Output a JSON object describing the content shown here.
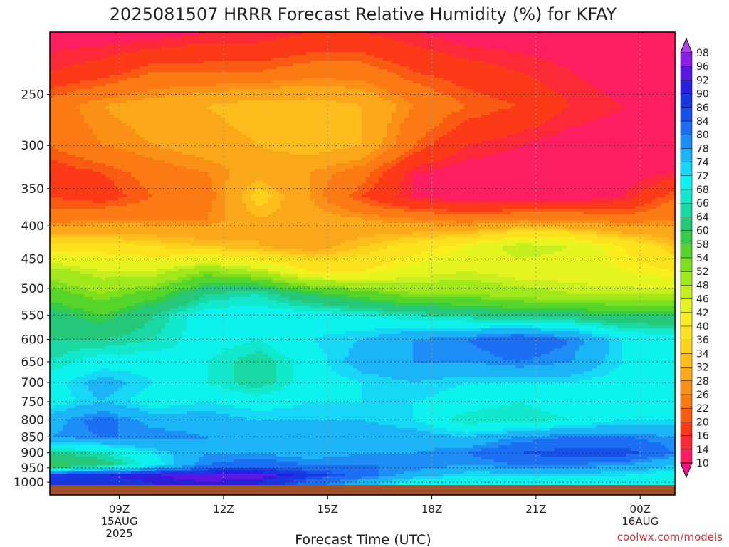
{
  "chart_data": {
    "type": "heatmap",
    "title": "2025081507 HRRR Forecast Relative Humidity (%) for KFAY",
    "xlabel": "Forecast Time (UTC)",
    "ylabel": "",
    "credit": "coolwx.com/models",
    "y_scale": "log-pressure",
    "y_axis_inverted": true,
    "ylim": [
      1010,
      200
    ],
    "x_ticks": [
      {
        "label": "09Z",
        "sub": [
          "15AUG",
          "2025"
        ],
        "hour": 9
      },
      {
        "label": "12Z",
        "sub": [],
        "hour": 12
      },
      {
        "label": "15Z",
        "sub": [],
        "hour": 15
      },
      {
        "label": "18Z",
        "sub": [],
        "hour": 18
      },
      {
        "label": "21Z",
        "sub": [],
        "hour": 21
      },
      {
        "label": "00Z",
        "sub": [
          "16AUG"
        ],
        "hour": 24
      }
    ],
    "xlim": [
      7,
      25
    ],
    "y_ticks": [
      250,
      300,
      350,
      400,
      450,
      500,
      550,
      600,
      650,
      700,
      750,
      800,
      850,
      900,
      950,
      1000
    ],
    "grid": true,
    "colorbar": {
      "position": "right",
      "levels": [
        10,
        14,
        16,
        20,
        22,
        26,
        28,
        32,
        34,
        36,
        40,
        42,
        46,
        48,
        52,
        54,
        58,
        60,
        64,
        66,
        68,
        72,
        74,
        78,
        80,
        84,
        86,
        90,
        92,
        96,
        98
      ],
      "colors": [
        "#f70f85",
        "#fc1e60",
        "#fc2a36",
        "#fd3a18",
        "#fb5a12",
        "#fb7a14",
        "#fa9116",
        "#fba71a",
        "#fcbd1c",
        "#fcd21c",
        "#fce11e",
        "#faef1e",
        "#e6f51f",
        "#c5ef1e",
        "#a0e71c",
        "#7ddf1d",
        "#55d42a",
        "#35cc4a",
        "#24c878",
        "#1ad8a4",
        "#12e8cc",
        "#0ef2ee",
        "#16d8f6",
        "#1ab4f7",
        "#1d8ef6",
        "#1c6ef2",
        "#1a50ea",
        "#1836e2",
        "#2a1ee0",
        "#5a18e6",
        "#8c1ce8",
        "#b040ee"
      ]
    },
    "profiles": [
      {
        "hour": 7.0,
        "rh": [
          [
            200,
            12
          ],
          [
            230,
            16
          ],
          [
            260,
            24
          ],
          [
            300,
            22
          ],
          [
            330,
            18
          ],
          [
            360,
            20
          ],
          [
            390,
            24
          ],
          [
            430,
            38
          ],
          [
            470,
            50
          ],
          [
            510,
            56
          ],
          [
            550,
            62
          ],
          [
            600,
            64
          ],
          [
            650,
            66
          ],
          [
            700,
            70
          ],
          [
            750,
            70
          ],
          [
            800,
            76
          ],
          [
            850,
            78
          ],
          [
            900,
            64
          ],
          [
            940,
            58
          ],
          [
            975,
            88
          ],
          [
            1000,
            86
          ]
        ]
      },
      {
        "hour": 8.5,
        "rh": [
          [
            200,
            12
          ],
          [
            230,
            18
          ],
          [
            260,
            28
          ],
          [
            300,
            26
          ],
          [
            330,
            20
          ],
          [
            360,
            18
          ],
          [
            390,
            26
          ],
          [
            430,
            38
          ],
          [
            470,
            46
          ],
          [
            510,
            52
          ],
          [
            550,
            58
          ],
          [
            600,
            64
          ],
          [
            650,
            70
          ],
          [
            700,
            76
          ],
          [
            750,
            74
          ],
          [
            800,
            82
          ],
          [
            850,
            80
          ],
          [
            900,
            66
          ],
          [
            940,
            62
          ],
          [
            975,
            90
          ],
          [
            1000,
            88
          ]
        ]
      },
      {
        "hour": 10.0,
        "rh": [
          [
            200,
            12
          ],
          [
            230,
            22
          ],
          [
            260,
            30
          ],
          [
            300,
            28
          ],
          [
            330,
            24
          ],
          [
            360,
            22
          ],
          [
            390,
            26
          ],
          [
            430,
            36
          ],
          [
            470,
            46
          ],
          [
            510,
            56
          ],
          [
            550,
            64
          ],
          [
            600,
            66
          ],
          [
            650,
            70
          ],
          [
            700,
            72
          ],
          [
            750,
            70
          ],
          [
            800,
            76
          ],
          [
            850,
            80
          ],
          [
            900,
            72
          ],
          [
            940,
            70
          ],
          [
            975,
            92
          ],
          [
            1000,
            90
          ]
        ]
      },
      {
        "hour": 11.5,
        "rh": [
          [
            200,
            14
          ],
          [
            230,
            22
          ],
          [
            260,
            32
          ],
          [
            300,
            30
          ],
          [
            330,
            26
          ],
          [
            360,
            24
          ],
          [
            390,
            26
          ],
          [
            430,
            34
          ],
          [
            470,
            52
          ],
          [
            510,
            64
          ],
          [
            550,
            70
          ],
          [
            600,
            70
          ],
          [
            650,
            68
          ],
          [
            700,
            68
          ],
          [
            750,
            72
          ],
          [
            800,
            76
          ],
          [
            850,
            78
          ],
          [
            900,
            78
          ],
          [
            940,
            80
          ],
          [
            975,
            94
          ],
          [
            1000,
            92
          ]
        ]
      },
      {
        "hour": 13.0,
        "rh": [
          [
            200,
            14
          ],
          [
            230,
            22
          ],
          [
            260,
            34
          ],
          [
            300,
            32
          ],
          [
            330,
            30
          ],
          [
            360,
            36
          ],
          [
            390,
            32
          ],
          [
            430,
            32
          ],
          [
            470,
            48
          ],
          [
            510,
            66
          ],
          [
            550,
            70
          ],
          [
            600,
            68
          ],
          [
            650,
            64
          ],
          [
            700,
            64
          ],
          [
            750,
            70
          ],
          [
            800,
            74
          ],
          [
            850,
            76
          ],
          [
            900,
            78
          ],
          [
            940,
            82
          ],
          [
            975,
            94
          ],
          [
            1000,
            90
          ]
        ]
      },
      {
        "hour": 14.5,
        "rh": [
          [
            200,
            16
          ],
          [
            230,
            24
          ],
          [
            260,
            34
          ],
          [
            300,
            34
          ],
          [
            330,
            28
          ],
          [
            360,
            28
          ],
          [
            390,
            30
          ],
          [
            430,
            30
          ],
          [
            470,
            40
          ],
          [
            510,
            60
          ],
          [
            550,
            70
          ],
          [
            600,
            72
          ],
          [
            650,
            70
          ],
          [
            700,
            70
          ],
          [
            750,
            72
          ],
          [
            800,
            74
          ],
          [
            850,
            76
          ],
          [
            900,
            76
          ],
          [
            940,
            80
          ],
          [
            975,
            88
          ],
          [
            1000,
            82
          ]
        ]
      },
      {
        "hour": 16.0,
        "rh": [
          [
            200,
            16
          ],
          [
            230,
            24
          ],
          [
            260,
            32
          ],
          [
            300,
            32
          ],
          [
            330,
            24
          ],
          [
            360,
            20
          ],
          [
            390,
            28
          ],
          [
            430,
            34
          ],
          [
            470,
            40
          ],
          [
            510,
            56
          ],
          [
            550,
            68
          ],
          [
            600,
            74
          ],
          [
            650,
            76
          ],
          [
            700,
            72
          ],
          [
            750,
            72
          ],
          [
            800,
            74
          ],
          [
            850,
            76
          ],
          [
            900,
            78
          ],
          [
            940,
            80
          ],
          [
            975,
            82
          ],
          [
            1000,
            76
          ]
        ]
      },
      {
        "hour": 17.5,
        "rh": [
          [
            200,
            14
          ],
          [
            230,
            20
          ],
          [
            260,
            26
          ],
          [
            300,
            22
          ],
          [
            330,
            14
          ],
          [
            360,
            14
          ],
          [
            390,
            26
          ],
          [
            430,
            38
          ],
          [
            470,
            44
          ],
          [
            510,
            52
          ],
          [
            550,
            66
          ],
          [
            600,
            78
          ],
          [
            650,
            78
          ],
          [
            700,
            74
          ],
          [
            750,
            72
          ],
          [
            800,
            72
          ],
          [
            850,
            76
          ],
          [
            900,
            78
          ],
          [
            940,
            80
          ],
          [
            975,
            76
          ],
          [
            1000,
            70
          ]
        ]
      },
      {
        "hour": 19.0,
        "rh": [
          [
            200,
            12
          ],
          [
            230,
            18
          ],
          [
            260,
            22
          ],
          [
            300,
            16
          ],
          [
            330,
            12
          ],
          [
            360,
            12
          ],
          [
            390,
            24
          ],
          [
            430,
            42
          ],
          [
            470,
            46
          ],
          [
            510,
            52
          ],
          [
            550,
            64
          ],
          [
            600,
            80
          ],
          [
            650,
            78
          ],
          [
            700,
            72
          ],
          [
            750,
            70
          ],
          [
            800,
            66
          ],
          [
            850,
            74
          ],
          [
            900,
            80
          ],
          [
            940,
            78
          ],
          [
            975,
            72
          ],
          [
            1000,
            68
          ]
        ]
      },
      {
        "hour": 20.5,
        "rh": [
          [
            200,
            12
          ],
          [
            230,
            16
          ],
          [
            260,
            20
          ],
          [
            300,
            14
          ],
          [
            330,
            12
          ],
          [
            360,
            12
          ],
          [
            390,
            26
          ],
          [
            430,
            48
          ],
          [
            470,
            44
          ],
          [
            510,
            50
          ],
          [
            550,
            62
          ],
          [
            600,
            84
          ],
          [
            650,
            80
          ],
          [
            700,
            72
          ],
          [
            750,
            68
          ],
          [
            800,
            66
          ],
          [
            850,
            78
          ],
          [
            900,
            84
          ],
          [
            940,
            80
          ],
          [
            975,
            72
          ],
          [
            1000,
            68
          ]
        ]
      },
      {
        "hour": 22.0,
        "rh": [
          [
            200,
            12
          ],
          [
            230,
            14
          ],
          [
            260,
            16
          ],
          [
            300,
            12
          ],
          [
            330,
            12
          ],
          [
            360,
            12
          ],
          [
            390,
            26
          ],
          [
            430,
            46
          ],
          [
            470,
            44
          ],
          [
            510,
            48
          ],
          [
            550,
            62
          ],
          [
            600,
            80
          ],
          [
            650,
            78
          ],
          [
            700,
            72
          ],
          [
            750,
            70
          ],
          [
            800,
            68
          ],
          [
            850,
            80
          ],
          [
            900,
            86
          ],
          [
            940,
            80
          ],
          [
            975,
            72
          ],
          [
            1000,
            68
          ]
        ]
      },
      {
        "hour": 23.5,
        "rh": [
          [
            200,
            12
          ],
          [
            230,
            12
          ],
          [
            260,
            14
          ],
          [
            300,
            12
          ],
          [
            330,
            12
          ],
          [
            360,
            14
          ],
          [
            390,
            24
          ],
          [
            430,
            40
          ],
          [
            470,
            42
          ],
          [
            510,
            48
          ],
          [
            550,
            60
          ],
          [
            600,
            72
          ],
          [
            650,
            72
          ],
          [
            700,
            70
          ],
          [
            750,
            70
          ],
          [
            800,
            72
          ],
          [
            850,
            80
          ],
          [
            900,
            86
          ],
          [
            940,
            78
          ],
          [
            975,
            72
          ],
          [
            1000,
            68
          ]
        ]
      },
      {
        "hour": 25.0,
        "rh": [
          [
            200,
            12
          ],
          [
            230,
            12
          ],
          [
            260,
            14
          ],
          [
            300,
            12
          ],
          [
            330,
            14
          ],
          [
            360,
            22
          ],
          [
            390,
            26
          ],
          [
            430,
            34
          ],
          [
            470,
            40
          ],
          [
            510,
            48
          ],
          [
            550,
            60
          ],
          [
            600,
            70
          ],
          [
            650,
            70
          ],
          [
            700,
            72
          ],
          [
            750,
            70
          ],
          [
            800,
            72
          ],
          [
            850,
            78
          ],
          [
            900,
            80
          ],
          [
            940,
            74
          ],
          [
            975,
            70
          ],
          [
            1000,
            68
          ]
        ]
      }
    ],
    "surface_band_color": "#a0522d"
  }
}
